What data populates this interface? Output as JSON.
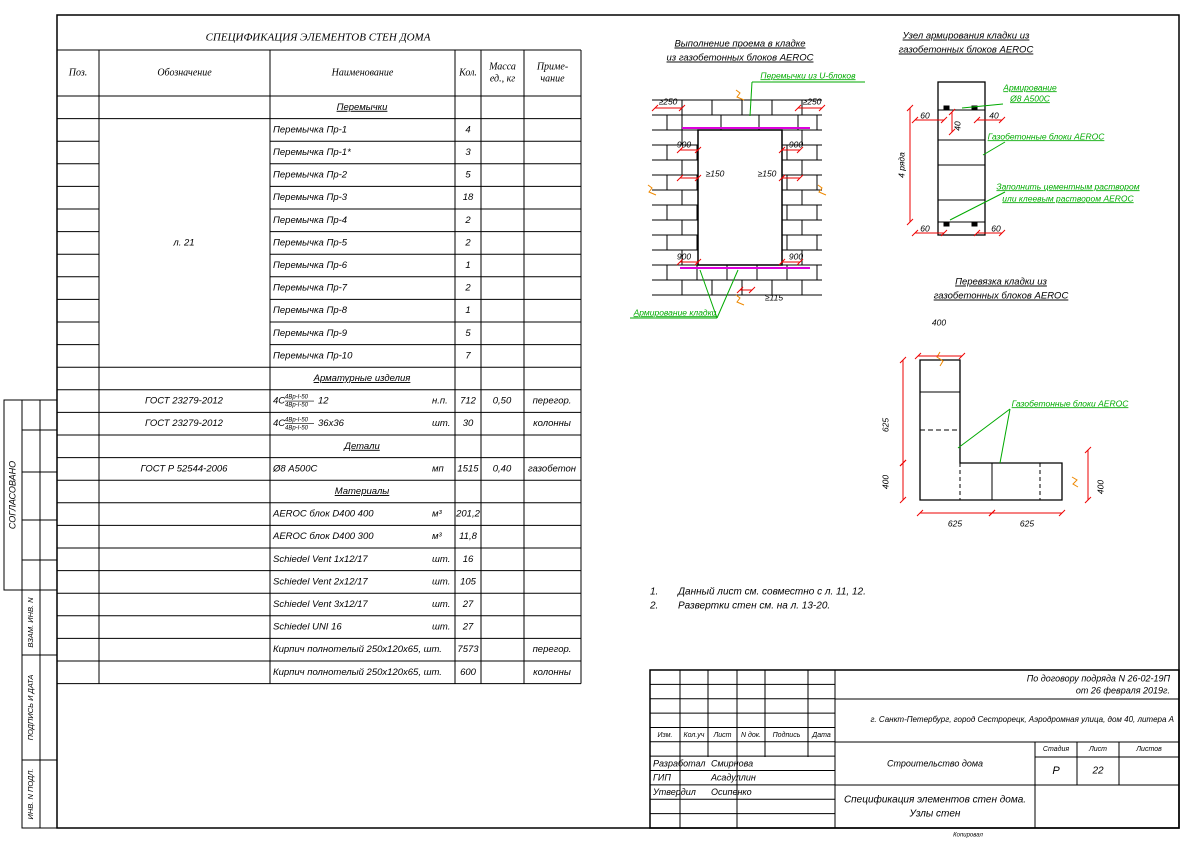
{
  "spec": {
    "title": "СПЕЦИФИКАЦИЯ ЭЛЕМЕНТОВ СТЕН ДОМА",
    "headers": [
      [
        "Поз."
      ],
      [
        "Обозначение"
      ],
      [
        "Наименование"
      ],
      [
        "Кол."
      ],
      [
        "Масса",
        "ед., кг"
      ],
      [
        "Приме-",
        "чание"
      ]
    ],
    "sections": [
      {
        "title": "Перемычки",
        "designation": "л. 21",
        "rows": [
          {
            "name": "Перемычка Пр-1",
            "qty": "4"
          },
          {
            "name": "Перемычка Пр-1*",
            "qty": "3"
          },
          {
            "name": "Перемычка Пр-2",
            "qty": "5"
          },
          {
            "name": "Перемычка Пр-3",
            "qty": "18"
          },
          {
            "name": "Перемычка Пр-4",
            "qty": "2"
          },
          {
            "name": "Перемычка Пр-5",
            "qty": "2"
          },
          {
            "name": "Перемычка Пр-6",
            "qty": "1"
          },
          {
            "name": "Перемычка Пр-7",
            "qty": "2"
          },
          {
            "name": "Перемычка Пр-8",
            "qty": "1"
          },
          {
            "name": "Перемычка Пр-9",
            "qty": "5"
          },
          {
            "name": "Перемычка Пр-10",
            "qty": "7"
          }
        ]
      },
      {
        "title": "Арматурные изделия",
        "rows": [
          {
            "designation": "ГОСТ 23279-2012",
            "name": "4С",
            "fraction": [
              "4Вр-I-50",
              "4Вр-I-50"
            ],
            "name_end": "12",
            "unit": "н.п.",
            "qty": "712",
            "mass": "0,50",
            "note": "перегор."
          },
          {
            "designation": "ГОСТ 23279-2012",
            "name": "4С",
            "fraction": [
              "4Вр-I-50",
              "4Вр-I-50"
            ],
            "name_end": "36х36",
            "unit": "шт.",
            "qty": "30",
            "note": "колонны"
          }
        ]
      },
      {
        "title": "Детали",
        "rows": [
          {
            "designation": "ГОСТ Р 52544-2006",
            "name": "Ø8 А500С",
            "unit": "мп",
            "qty": "1515",
            "mass": "0,40",
            "note": "газобетон"
          }
        ]
      },
      {
        "title": "Материалы",
        "rows": [
          {
            "name": "AEROC блок D400 400",
            "unit": "м³",
            "qty": "201,2"
          },
          {
            "name": "AEROC блок D400 300",
            "unit": "м³",
            "qty": "11,8"
          },
          {
            "name": "Schiedel Vent 1х12/17",
            "unit": "шт.",
            "qty": "16"
          },
          {
            "name": "Schiedel Vent 2х12/17",
            "unit": "шт.",
            "qty": "105"
          },
          {
            "name": "Schiedel Vent 3х12/17",
            "unit": "шт.",
            "qty": "27"
          },
          {
            "name": "Schiedel UNI 16",
            "unit": "шт.",
            "qty": "27"
          },
          {
            "name": "Кирпич полнотелый 250х120х65, шт.",
            "qty": "7573",
            "note": "перегор."
          },
          {
            "name": "Кирпич полнотелый 250х120х65, шт.",
            "qty": "600",
            "note": "колонны"
          }
        ]
      }
    ]
  },
  "drawings": {
    "opening": {
      "title": [
        "Выполнение проема в кладке",
        "из газобетонных блоков AEROC"
      ],
      "lintel_label": "Перемычки из U-блоков",
      "dims": [
        "≥250",
        "≥250",
        "900",
        "900",
        "≥150",
        "≥150",
        "900",
        "900",
        "≥115"
      ],
      "reinforcement_label": "Армирование кладки"
    },
    "node": {
      "title": [
        "Узел армирования кладки из",
        "газобетонных блоков AEROC"
      ],
      "rebar_label": [
        "Армирование",
        "Ø8 А500С"
      ],
      "dims": [
        "60",
        "40",
        "40",
        "4 ряда",
        "60",
        "60"
      ],
      "blocks_label": "Газобетонные блоки AEROC",
      "fill_label": [
        "Заполнить цементным раствором",
        "или клеевым раствором AEROC"
      ]
    },
    "bond": {
      "title": [
        "Перевязка кладки из",
        "газобетонных блоков AEROC"
      ],
      "dims": [
        "400",
        "625",
        "400",
        "400",
        "625",
        "625"
      ],
      "blocks_label": "Газобетонные блоки AEROC"
    }
  },
  "notes": [
    {
      "number": "1.",
      "text": "Данный лист см. совместно с л. 11, 12."
    },
    {
      "number": "2.",
      "text": "Развертки стен см. на л. 13-20."
    }
  ],
  "title_block": {
    "contract": [
      "По договору подряда N 26-02-19П",
      "от 26 февраля 2019г."
    ],
    "address": "г. Санкт-Петербург, город Сестрорецк, Аэродромная улица, дом 40, литера А",
    "columns": [
      "Изм.",
      "Кол.уч",
      "Лист",
      "N док.",
      "Подпись",
      "Дата"
    ],
    "signatures": [
      {
        "role": "Разработал",
        "name": "Смирнова"
      },
      {
        "role": "ГИП",
        "name": "Асадуллин"
      },
      {
        "role": "Утвердил",
        "name": "Осипенко"
      }
    ],
    "project": "Строительство дома",
    "stage_headers": [
      "Стадия",
      "Лист",
      "Листов"
    ],
    "stage": "Р",
    "sheet": "22",
    "sheet_title": [
      "Спецификация элементов стен дома.",
      "Узлы стен"
    ],
    "copied": "Копировал"
  },
  "side_stamps": [
    "СОГЛАСОВАНО",
    "ВЗАМ. ИНВ. N",
    "ПОДПИСЬ И ДАТА",
    "ИНВ. N ПОДЛ."
  ]
}
